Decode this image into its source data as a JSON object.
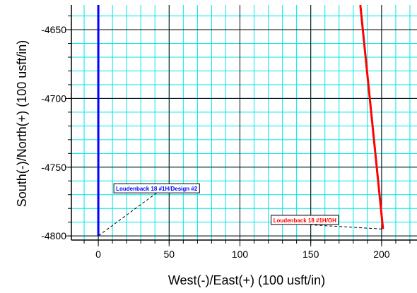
{
  "chart_data": {
    "type": "line",
    "xlabel": "West(-)/East(+) (100 usft/in)",
    "ylabel": "South(-)/North(+) (100 usft/in)",
    "xlim": [
      -19,
      225
    ],
    "ylim": [
      -4803,
      -4632
    ],
    "x_ticks": [
      0,
      50,
      100,
      150,
      200
    ],
    "y_ticks": [
      -4650,
      -4700,
      -4750,
      -4800
    ],
    "grid": true,
    "grid_minor_x": 10,
    "grid_minor_y": 10,
    "colors": {
      "background": "#ffffff",
      "minor_grid": "#00e5e5",
      "major_grid": "#000000"
    },
    "series": [
      {
        "name": "Loudenback 18 #1H/Design #2",
        "color": "#0000ff",
        "points": [
          [
            0,
            -4632
          ],
          [
            0,
            -4800
          ]
        ]
      },
      {
        "name": "Loudenback 18 #1H/OH",
        "color": "#ff0000",
        "points": [
          [
            185,
            -4632
          ],
          [
            201,
            -4795
          ]
        ]
      }
    ],
    "annotations": [
      {
        "text": "Loudenback 18 #1H/Design #2",
        "color": "#0000ff",
        "label_at": [
          11,
          -4762
        ],
        "leader_to": [
          0,
          -4800
        ]
      },
      {
        "text": "Loudenback 18 #1H/OH",
        "color": "#ff0000",
        "label_at": [
          122,
          -4785
        ],
        "leader_to": [
          201,
          -4795
        ]
      }
    ]
  }
}
